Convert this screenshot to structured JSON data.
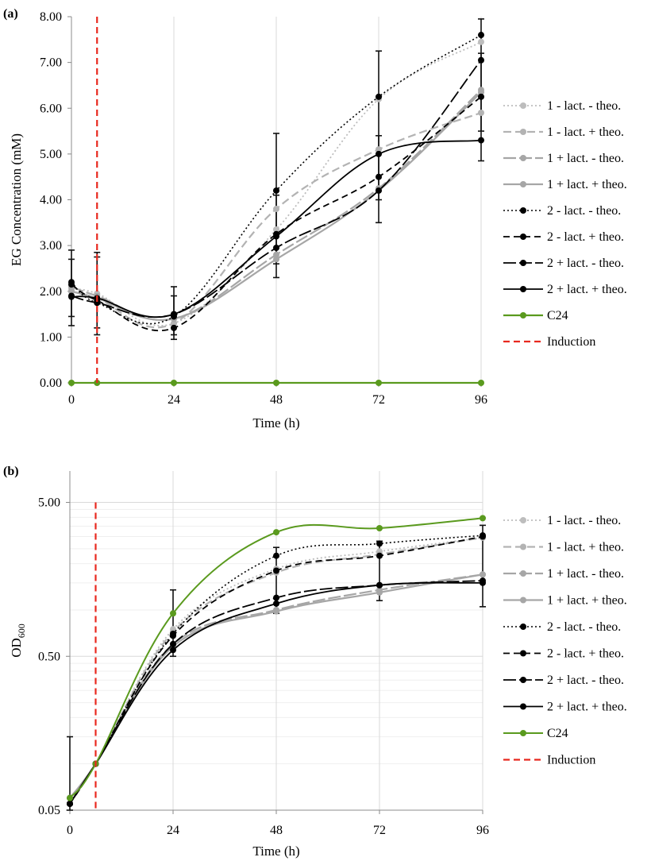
{
  "chart_data": [
    {
      "panel_label": "(a)",
      "type": "line",
      "xlabel": "Time (h)",
      "ylabel": "EG Concentration (mM)",
      "x": [
        0,
        6,
        24,
        48,
        72,
        96
      ],
      "x_ticks": [
        "0",
        "24",
        "48",
        "72",
        "96"
      ],
      "xlim": [
        0,
        96
      ],
      "ylim": [
        0,
        8
      ],
      "y_scale": "linear",
      "y_ticks": [
        "0.00",
        "1.00",
        "2.00",
        "3.00",
        "4.00",
        "5.00",
        "6.00",
        "7.00",
        "8.00"
      ],
      "grid": "vertical",
      "legend_position": "right",
      "induction_x": 6,
      "series": [
        {
          "name": "1 - lact. - theo.",
          "values": [
            2.05,
            1.95,
            1.3,
            3.35,
            6.2,
            7.45
          ],
          "color": "#bdbdbd",
          "dash": "2,3",
          "width": 1.8
        },
        {
          "name": "1 - lact. + theo.",
          "values": [
            2.0,
            1.85,
            1.3,
            3.8,
            5.1,
            5.9
          ],
          "color": "#b3b3b3",
          "dash": "10,5",
          "width": 2.2
        },
        {
          "name": "1 + lact. - theo.",
          "values": [
            2.1,
            1.9,
            1.4,
            2.8,
            4.25,
            6.4
          ],
          "color": "#a6a6a6",
          "dash": "16,4",
          "width": 2.2
        },
        {
          "name": "1 + lact. + theo.",
          "values": [
            2.0,
            1.85,
            1.4,
            2.7,
            4.2,
            6.35
          ],
          "color": "#a6a6a6",
          "dash": "",
          "width": 2.2
        },
        {
          "name": "2 - lact. - theo.",
          "values": [
            2.2,
            1.75,
            1.45,
            4.2,
            6.25,
            7.6
          ],
          "color": "#000000",
          "dash": "2,3",
          "width": 1.6
        },
        {
          "name": "2 - lact. + theo.",
          "values": [
            2.15,
            1.8,
            1.2,
            3.25,
            4.5,
            6.25
          ],
          "color": "#000000",
          "dash": "8,5",
          "width": 1.8
        },
        {
          "name": "2 + lact. - theo.",
          "values": [
            1.9,
            1.75,
            1.5,
            2.95,
            4.2,
            7.05
          ],
          "color": "#000000",
          "dash": "16,4",
          "width": 1.8
        },
        {
          "name": "2 + lact. + theo.",
          "values": [
            1.88,
            1.85,
            1.5,
            3.2,
            5.0,
            5.3
          ],
          "color": "#000000",
          "dash": "",
          "width": 1.8
        },
        {
          "name": "C24",
          "values": [
            0,
            0,
            0,
            0,
            0,
            0
          ],
          "color": "#5a9a1e",
          "dash": "",
          "width": 2.2
        }
      ],
      "error_bars": [
        {
          "x": 0,
          "low": 1.25,
          "high": 2.9
        },
        {
          "x": 0,
          "low": 1.45,
          "high": 2.7
        },
        {
          "x": 6,
          "low": 1.05,
          "high": 2.85
        },
        {
          "x": 6,
          "low": 1.2,
          "high": 2.75
        },
        {
          "x": 24,
          "low": 0.95,
          "high": 2.1
        },
        {
          "x": 24,
          "low": 1.05,
          "high": 1.9
        },
        {
          "x": 48,
          "low": 2.3,
          "high": 5.45
        },
        {
          "x": 48,
          "low": 2.6,
          "high": 4.1
        },
        {
          "x": 72,
          "low": 3.5,
          "high": 7.25
        },
        {
          "x": 72,
          "low": 4.0,
          "high": 5.4
        },
        {
          "x": 96,
          "low": 4.85,
          "high": 7.95
        },
        {
          "x": 96,
          "low": 5.5,
          "high": 7.2
        }
      ],
      "legend": [
        "1 - lact. - theo.",
        "1 - lact. + theo.",
        "1 + lact. - theo.",
        "1 + lact. + theo.",
        "2 - lact. - theo.",
        "2 - lact. + theo.",
        "2 + lact. - theo.",
        "2 + lact. + theo.",
        "C24",
        "Induction"
      ]
    },
    {
      "panel_label": "(b)",
      "type": "line",
      "xlabel": "Time (h)",
      "ylabel": "OD",
      "ylabel_sub": "600",
      "x": [
        0,
        6,
        24,
        48,
        72,
        96
      ],
      "x_ticks": [
        "0",
        "24",
        "48",
        "72",
        "96"
      ],
      "xlim": [
        0,
        96
      ],
      "ylim": [
        0.05,
        8
      ],
      "y_scale": "log",
      "y_ticks": [
        "0.05",
        "0.50",
        "5.00"
      ],
      "grid": "vertical and minor horizontal",
      "legend_position": "right",
      "induction_x": 6,
      "series": [
        {
          "name": "1 - lact. - theo.",
          "values": [
            0.06,
            0.1,
            0.75,
            1.85,
            2.4,
            2.95
          ],
          "color": "#bdbdbd",
          "dash": "2,3",
          "width": 1.8
        },
        {
          "name": "1 - lact. + theo.",
          "values": [
            0.06,
            0.1,
            0.72,
            1.75,
            2.3,
            2.95
          ],
          "color": "#b3b3b3",
          "dash": "10,5",
          "width": 2.2
        },
        {
          "name": "1 + lact. - theo.",
          "values": [
            0.06,
            0.1,
            0.6,
            1.0,
            1.35,
            1.7
          ],
          "color": "#a6a6a6",
          "dash": "16,4",
          "width": 2.2
        },
        {
          "name": "1 + lact. + theo.",
          "values": [
            0.06,
            0.1,
            0.58,
            0.98,
            1.3,
            1.7
          ],
          "color": "#a6a6a6",
          "dash": "",
          "width": 2.2
        },
        {
          "name": "2 - lact. - theo.",
          "values": [
            0.055,
            0.1,
            0.7,
            2.25,
            2.7,
            3.05
          ],
          "color": "#000000",
          "dash": "2,3",
          "width": 1.6
        },
        {
          "name": "2 - lact. + theo.",
          "values": [
            0.055,
            0.1,
            0.68,
            1.8,
            2.25,
            3.0
          ],
          "color": "#000000",
          "dash": "8,5",
          "width": 1.8
        },
        {
          "name": "2 + lact. - theo.",
          "values": [
            0.055,
            0.1,
            0.6,
            1.2,
            1.45,
            1.55
          ],
          "color": "#000000",
          "dash": "16,4",
          "width": 1.8
        },
        {
          "name": "2 + lact. + theo.",
          "values": [
            0.055,
            0.1,
            0.55,
            1.1,
            1.45,
            1.5
          ],
          "color": "#000000",
          "dash": "",
          "width": 1.8
        },
        {
          "name": "C24",
          "values": [
            0.06,
            0.1,
            0.95,
            3.2,
            3.4,
            3.95
          ],
          "color": "#5a9a1e",
          "dash": "",
          "width": 2.0
        }
      ],
      "error_bars": [
        {
          "x": 0,
          "low": 0.05,
          "high": 0.15
        },
        {
          "x": 24,
          "low": 0.5,
          "high": 1.35
        },
        {
          "x": 48,
          "low": 0.95,
          "high": 2.55
        },
        {
          "x": 72,
          "low": 1.15,
          "high": 2.8
        },
        {
          "x": 96,
          "low": 1.05,
          "high": 3.55
        }
      ],
      "legend": [
        "1 - lact. - theo.",
        "1 - lact. + theo.",
        "1 + lact. - theo.",
        "1 + lact. + theo.",
        "2 - lact. - theo.",
        "2 - lact. + theo.",
        "2 + lact. - theo.",
        "2 + lact. + theo.",
        "C24",
        "Induction"
      ]
    }
  ]
}
